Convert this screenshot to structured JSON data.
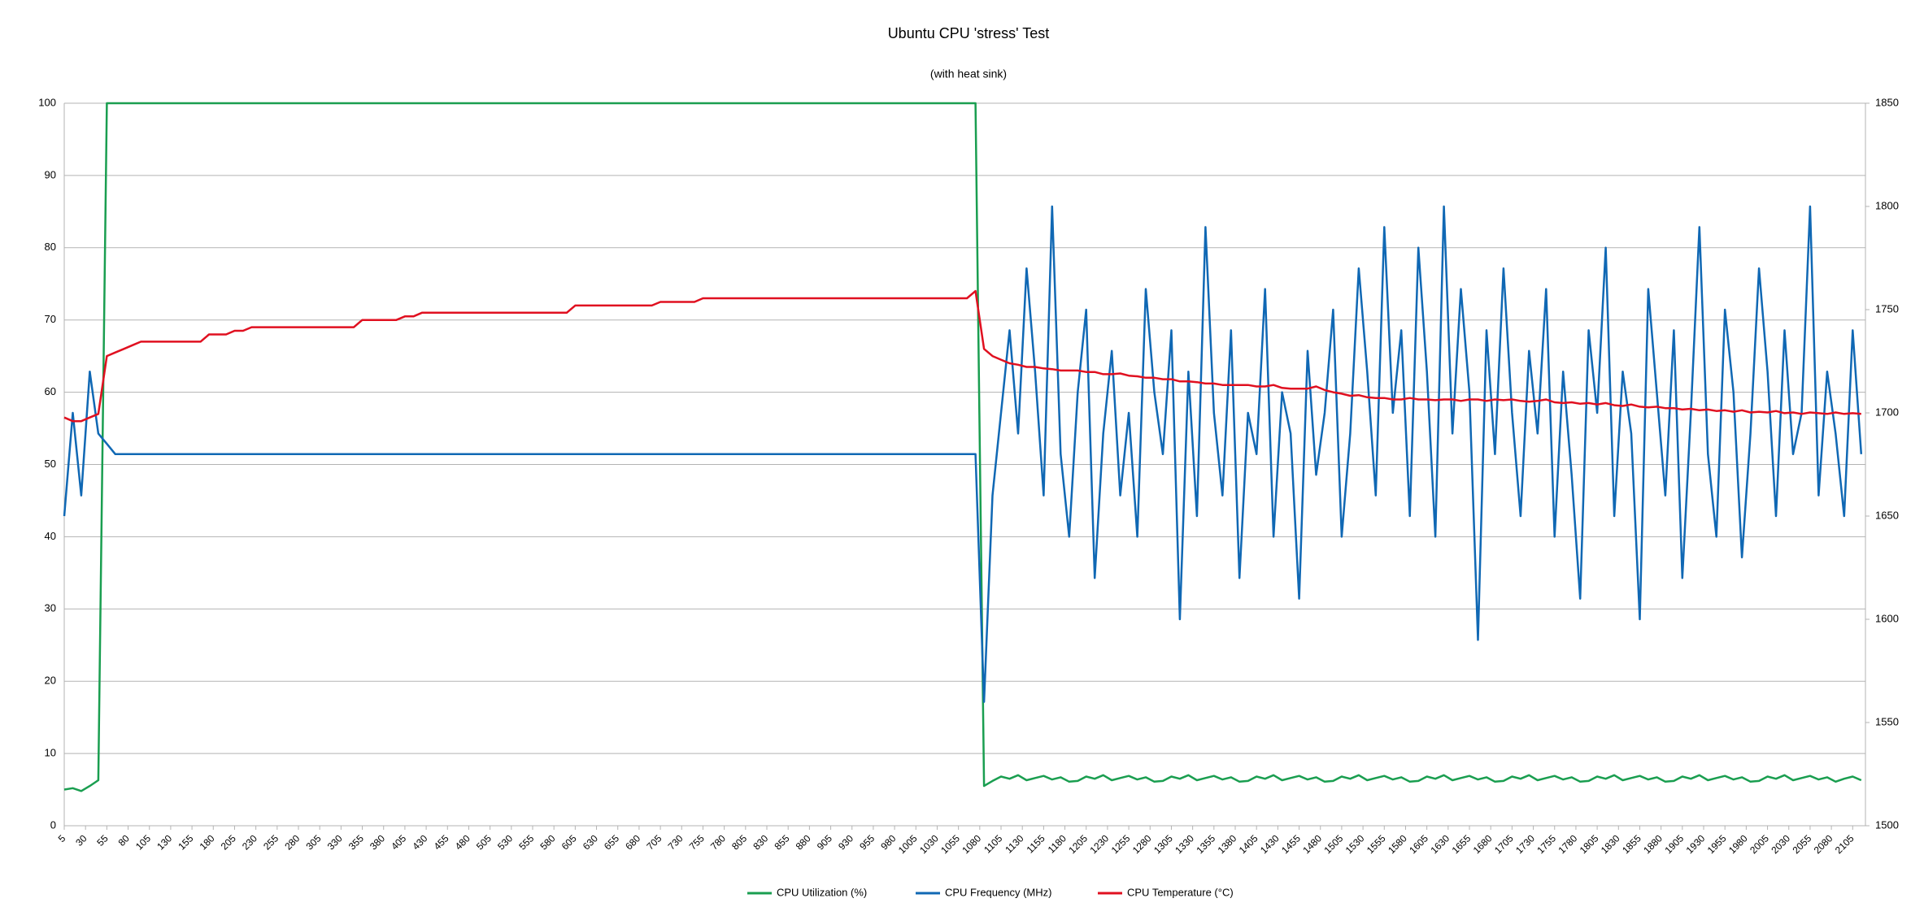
{
  "chart_data": {
    "type": "line",
    "title": "Ubuntu CPU 'stress' Test",
    "subtitle": "(with heat sink)",
    "xlim": [
      5,
      2120
    ],
    "xticks": [
      5,
      30,
      55,
      80,
      105,
      130,
      155,
      180,
      205,
      230,
      255,
      280,
      305,
      330,
      355,
      380,
      405,
      430,
      455,
      480,
      505,
      530,
      555,
      580,
      605,
      630,
      655,
      680,
      705,
      730,
      755,
      780,
      805,
      830,
      855,
      880,
      905,
      930,
      955,
      980,
      1005,
      1030,
      1055,
      1080,
      1105,
      1130,
      1155,
      1180,
      1205,
      1230,
      1255,
      1280,
      1305,
      1330,
      1355,
      1380,
      1405,
      1430,
      1455,
      1480,
      1505,
      1530,
      1555,
      1580,
      1605,
      1630,
      1655,
      1680,
      1705,
      1730,
      1755,
      1780,
      1805,
      1830,
      1855,
      1880,
      1905,
      1930,
      1955,
      1980,
      2005,
      2030,
      2055,
      2080,
      2105
    ],
    "ylim": [
      0,
      100
    ],
    "yticks": [
      0,
      10,
      20,
      30,
      40,
      50,
      60,
      70,
      80,
      90,
      100
    ],
    "y2lim": [
      1500,
      1850
    ],
    "y2ticks": [
      1500,
      1550,
      1600,
      1650,
      1700,
      1750,
      1800,
      1850
    ],
    "grid": true,
    "x": [
      5,
      15,
      25,
      35,
      45,
      55,
      65,
      75,
      85,
      95,
      105,
      115,
      125,
      135,
      145,
      155,
      165,
      175,
      185,
      195,
      205,
      215,
      225,
      235,
      245,
      255,
      265,
      275,
      285,
      295,
      305,
      315,
      325,
      335,
      345,
      355,
      365,
      375,
      385,
      395,
      405,
      415,
      425,
      435,
      445,
      455,
      465,
      475,
      485,
      495,
      505,
      515,
      525,
      535,
      545,
      555,
      565,
      575,
      585,
      595,
      605,
      615,
      625,
      635,
      645,
      655,
      665,
      675,
      685,
      695,
      705,
      715,
      725,
      735,
      745,
      755,
      765,
      775,
      785,
      795,
      805,
      815,
      825,
      835,
      845,
      855,
      865,
      875,
      885,
      895,
      905,
      915,
      925,
      935,
      945,
      955,
      965,
      975,
      985,
      995,
      1005,
      1015,
      1025,
      1035,
      1045,
      1055,
      1065,
      1075,
      1085,
      1095,
      1105,
      1115,
      1125,
      1135,
      1145,
      1155,
      1165,
      1175,
      1185,
      1195,
      1205,
      1215,
      1225,
      1235,
      1245,
      1255,
      1265,
      1275,
      1285,
      1295,
      1305,
      1315,
      1325,
      1335,
      1345,
      1355,
      1365,
      1375,
      1385,
      1395,
      1405,
      1415,
      1425,
      1435,
      1445,
      1455,
      1465,
      1475,
      1485,
      1495,
      1505,
      1515,
      1525,
      1535,
      1545,
      1555,
      1565,
      1575,
      1585,
      1595,
      1605,
      1615,
      1625,
      1635,
      1645,
      1655,
      1665,
      1675,
      1685,
      1695,
      1705,
      1715,
      1725,
      1735,
      1745,
      1755,
      1765,
      1775,
      1785,
      1795,
      1805,
      1815,
      1825,
      1835,
      1845,
      1855,
      1865,
      1875,
      1885,
      1895,
      1905,
      1915,
      1925,
      1935,
      1945,
      1955,
      1965,
      1975,
      1985,
      1995,
      2005,
      2015,
      2025,
      2035,
      2045,
      2055,
      2065,
      2075,
      2085,
      2095,
      2105,
      2115
    ],
    "series": [
      {
        "name": "CPU Utilization (%)",
        "color": "#1a9e50",
        "values": [
          5,
          5.2,
          4.8,
          5.5,
          6.3,
          100,
          100,
          100,
          100,
          100,
          100,
          100,
          100,
          100,
          100,
          100,
          100,
          100,
          100,
          100,
          100,
          100,
          100,
          100,
          100,
          100,
          100,
          100,
          100,
          100,
          100,
          100,
          100,
          100,
          100,
          100,
          100,
          100,
          100,
          100,
          100,
          100,
          100,
          100,
          100,
          100,
          100,
          100,
          100,
          100,
          100,
          100,
          100,
          100,
          100,
          100,
          100,
          100,
          100,
          100,
          100,
          100,
          100,
          100,
          100,
          100,
          100,
          100,
          100,
          100,
          100,
          100,
          100,
          100,
          100,
          100,
          100,
          100,
          100,
          100,
          100,
          100,
          100,
          100,
          100,
          100,
          100,
          100,
          100,
          100,
          100,
          100,
          100,
          100,
          100,
          100,
          100,
          100,
          100,
          100,
          100,
          100,
          100,
          100,
          100,
          100,
          100,
          100,
          5.5,
          6.2,
          6.8,
          6.5,
          7,
          6.3,
          6.6,
          6.9,
          6.4,
          6.7,
          6.1,
          6.2,
          6.8,
          6.5,
          7,
          6.3,
          6.6,
          6.9,
          6.4,
          6.7,
          6.1,
          6.2,
          6.8,
          6.5,
          7,
          6.3,
          6.6,
          6.9,
          6.4,
          6.7,
          6.1,
          6.2,
          6.8,
          6.5,
          7,
          6.3,
          6.6,
          6.9,
          6.4,
          6.7,
          6.1,
          6.2,
          6.8,
          6.5,
          7,
          6.3,
          6.6,
          6.9,
          6.4,
          6.7,
          6.1,
          6.2,
          6.8,
          6.5,
          7,
          6.3,
          6.6,
          6.9,
          6.4,
          6.7,
          6.1,
          6.2,
          6.8,
          6.5,
          7,
          6.3,
          6.6,
          6.9,
          6.4,
          6.7,
          6.1,
          6.2,
          6.8,
          6.5,
          7,
          6.3,
          6.6,
          6.9,
          6.4,
          6.7,
          6.1,
          6.2,
          6.8,
          6.5,
          7,
          6.3,
          6.6,
          6.9,
          6.4,
          6.7,
          6.1,
          6.2,
          6.8,
          6.5,
          7,
          6.3,
          6.6,
          6.9,
          6.4,
          6.7,
          6.1,
          6.5,
          6.8,
          6.3
        ]
      },
      {
        "name": "CPU Frequency (MHz)",
        "color": "#1068b4",
        "axis": "y2",
        "values": [
          1650,
          1700,
          1660,
          1720,
          1690,
          1685,
          1680,
          1680,
          1680,
          1680,
          1680,
          1680,
          1680,
          1680,
          1680,
          1680,
          1680,
          1680,
          1680,
          1680,
          1680,
          1680,
          1680,
          1680,
          1680,
          1680,
          1680,
          1680,
          1680,
          1680,
          1680,
          1680,
          1680,
          1680,
          1680,
          1680,
          1680,
          1680,
          1680,
          1680,
          1680,
          1680,
          1680,
          1680,
          1680,
          1680,
          1680,
          1680,
          1680,
          1680,
          1680,
          1680,
          1680,
          1680,
          1680,
          1680,
          1680,
          1680,
          1680,
          1680,
          1680,
          1680,
          1680,
          1680,
          1680,
          1680,
          1680,
          1680,
          1680,
          1680,
          1680,
          1680,
          1680,
          1680,
          1680,
          1680,
          1680,
          1680,
          1680,
          1680,
          1680,
          1680,
          1680,
          1680,
          1680,
          1680,
          1680,
          1680,
          1680,
          1680,
          1680,
          1680,
          1680,
          1680,
          1680,
          1680,
          1680,
          1680,
          1680,
          1680,
          1680,
          1680,
          1680,
          1680,
          1680,
          1680,
          1680,
          1680,
          1560,
          1660,
          1700,
          1740,
          1690,
          1770,
          1720,
          1660,
          1800,
          1680,
          1640,
          1710,
          1750,
          1620,
          1690,
          1730,
          1660,
          1700,
          1640,
          1760,
          1710,
          1680,
          1740,
          1600,
          1720,
          1650,
          1790,
          1700,
          1660,
          1740,
          1620,
          1700,
          1680,
          1760,
          1640,
          1710,
          1690,
          1610,
          1730,
          1670,
          1700,
          1750,
          1640,
          1690,
          1770,
          1720,
          1660,
          1790,
          1700,
          1740,
          1650,
          1780,
          1720,
          1640,
          1800,
          1690,
          1760,
          1710,
          1590,
          1740,
          1680,
          1770,
          1700,
          1650,
          1730,
          1690,
          1760,
          1640,
          1720,
          1670,
          1610,
          1740,
          1700,
          1780,
          1650,
          1720,
          1690,
          1600,
          1760,
          1710,
          1660,
          1740,
          1620,
          1700,
          1790,
          1680,
          1640,
          1750,
          1710,
          1630,
          1690,
          1770,
          1720,
          1650,
          1740,
          1680,
          1700,
          1800,
          1660,
          1720,
          1690,
          1650,
          1740,
          1680
        ]
      },
      {
        "name": "CPU Temperature (°C)",
        "color": "#e01020",
        "values": [
          56.5,
          56,
          56,
          56.5,
          57,
          65,
          65.5,
          66,
          66.5,
          67,
          67,
          67,
          67,
          67,
          67,
          67,
          67,
          68,
          68,
          68,
          68.5,
          68.5,
          69,
          69,
          69,
          69,
          69,
          69,
          69,
          69,
          69,
          69,
          69,
          69,
          69,
          70,
          70,
          70,
          70,
          70,
          70.5,
          70.5,
          71,
          71,
          71,
          71,
          71,
          71,
          71,
          71,
          71,
          71,
          71,
          71,
          71,
          71,
          71,
          71,
          71,
          71,
          72,
          72,
          72,
          72,
          72,
          72,
          72,
          72,
          72,
          72,
          72.5,
          72.5,
          72.5,
          72.5,
          72.5,
          73,
          73,
          73,
          73,
          73,
          73,
          73,
          73,
          73,
          73,
          73,
          73,
          73,
          73,
          73,
          73,
          73,
          73,
          73,
          73,
          73,
          73,
          73,
          73,
          73,
          73,
          73,
          73,
          73,
          73,
          73,
          73,
          74,
          66,
          65,
          64.5,
          64,
          63.8,
          63.5,
          63.5,
          63.3,
          63.2,
          63,
          63,
          63,
          62.8,
          62.8,
          62.5,
          62.5,
          62.6,
          62.3,
          62.2,
          62,
          62,
          61.8,
          61.8,
          61.5,
          61.5,
          61.4,
          61.2,
          61.2,
          61,
          61,
          61,
          61,
          60.8,
          60.8,
          61,
          60.6,
          60.5,
          60.5,
          60.5,
          60.8,
          60.3,
          60,
          59.8,
          59.5,
          59.6,
          59.3,
          59.2,
          59.2,
          59,
          59,
          59.2,
          59,
          59,
          58.9,
          59,
          59,
          58.8,
          59,
          59,
          58.8,
          59,
          58.9,
          59,
          58.8,
          58.7,
          58.8,
          59,
          58.6,
          58.5,
          58.6,
          58.4,
          58.5,
          58.3,
          58.5,
          58.2,
          58.1,
          58.3,
          58,
          57.9,
          58,
          57.8,
          57.8,
          57.6,
          57.7,
          57.5,
          57.6,
          57.4,
          57.5,
          57.3,
          57.5,
          57.2,
          57.3,
          57.2,
          57.4,
          57.1,
          57.2,
          57,
          57.2,
          57.1,
          57,
          57.2,
          57,
          57.1,
          57
        ]
      }
    ]
  }
}
